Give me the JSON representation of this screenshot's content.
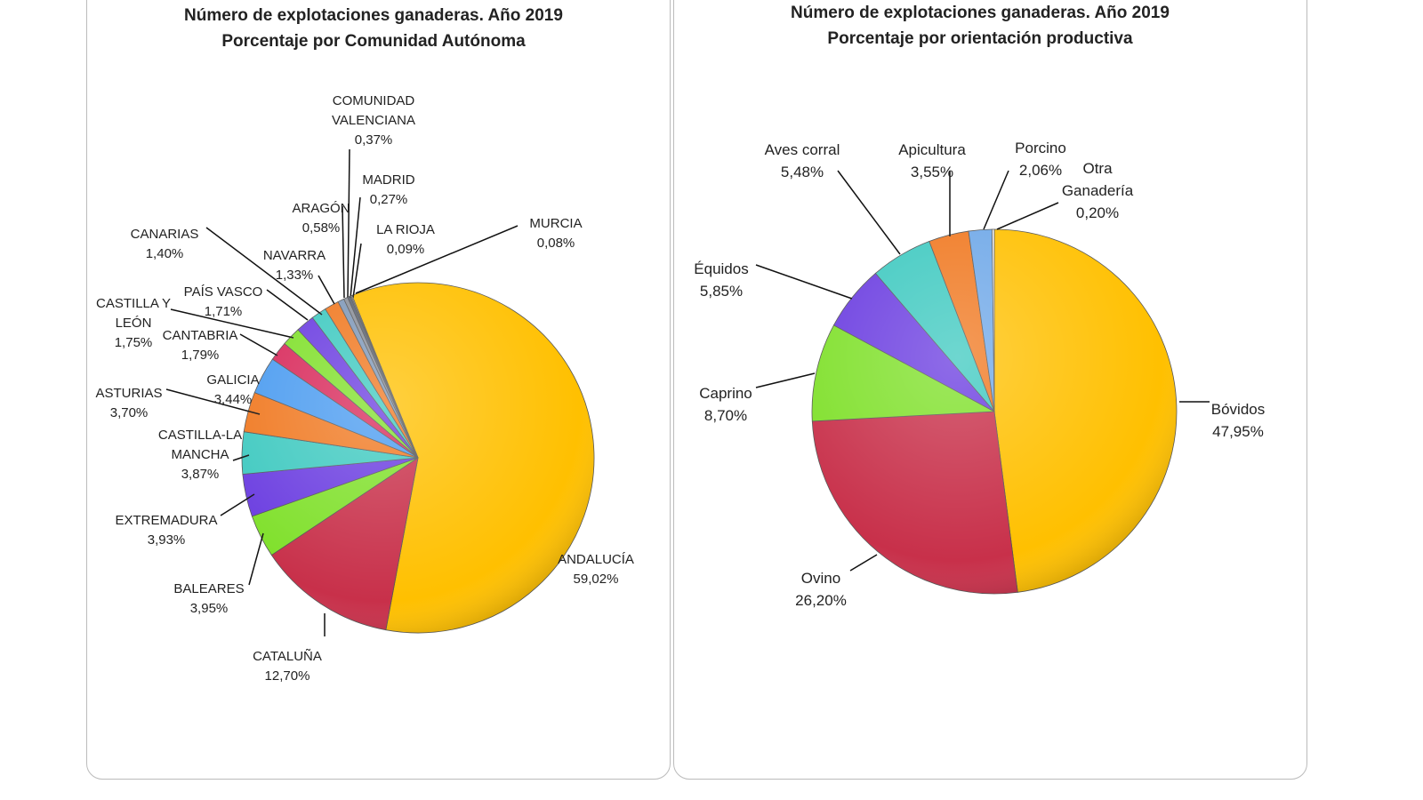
{
  "chart_data": [
    {
      "type": "pie",
      "title": [
        "Número de explotaciones ganaderas. Año 2019",
        "Porcentaje por Comunidad Autónoma"
      ],
      "unit": "%",
      "slices": [
        {
          "label": [
            "ANDALUCÍA"
          ],
          "value": 59.02,
          "text": "59,02%",
          "color": "#FFC000"
        },
        {
          "label": [
            "CATALUÑA"
          ],
          "value": 12.7,
          "text": "12,70%",
          "color": "#C8304A"
        },
        {
          "label": [
            "BALEARES"
          ],
          "value": 3.95,
          "text": "3,95%",
          "color": "#7FE02A"
        },
        {
          "label": [
            "EXTREMADURA"
          ],
          "value": 3.93,
          "text": "3,93%",
          "color": "#6A3CE0"
        },
        {
          "label": [
            "CASTILLA-LA",
            "MANCHA"
          ],
          "value": 3.87,
          "text": "3,87%",
          "color": "#3EC9C0"
        },
        {
          "label": [
            "ASTURIAS"
          ],
          "value": 3.7,
          "text": "3,70%",
          "color": "#F07820"
        },
        {
          "label": [
            "GALICIA"
          ],
          "value": 3.44,
          "text": "3,44%",
          "color": "#4A9BF0"
        },
        {
          "label": [
            "CANTABRIA"
          ],
          "value": 1.79,
          "text": "1,79%",
          "color": "#D8285A"
        },
        {
          "label": [
            "CASTILLA Y",
            "LEÓN"
          ],
          "value": 1.75,
          "text": "1,75%",
          "color": "#7FE02A"
        },
        {
          "label": [
            "PAÍS VASCO"
          ],
          "value": 1.71,
          "text": "1,71%",
          "color": "#6A3CE0"
        },
        {
          "label": [
            "CANARIAS"
          ],
          "value": 1.4,
          "text": "1,40%",
          "color": "#3EC9C0"
        },
        {
          "label": [
            "NAVARRA"
          ],
          "value": 1.33,
          "text": "1,33%",
          "color": "#F07820"
        },
        {
          "label": [
            "ARAGÓN"
          ],
          "value": 0.58,
          "text": "0,58%",
          "color": "#7F98B8"
        },
        {
          "label": [
            "COMUNIDAD",
            "VALENCIANA"
          ],
          "value": 0.37,
          "text": "0,37%",
          "color": "#8A8F99"
        },
        {
          "label": [
            "MADRID"
          ],
          "value": 0.27,
          "text": "0,27%",
          "color": "#5A6272"
        },
        {
          "label": [
            "LA RIOJA"
          ],
          "value": 0.09,
          "text": "0,09%",
          "color": "#A0A8B8"
        },
        {
          "label": [
            "MURCIA"
          ],
          "value": 0.08,
          "text": "0,08%",
          "color": "#F4F4F4"
        }
      ]
    },
    {
      "type": "pie",
      "title": [
        "Número de explotaciones ganaderas. Año 2019",
        "Porcentaje por orientación productiva"
      ],
      "unit": "%",
      "slices": [
        {
          "label": [
            "Bóvidos"
          ],
          "value": 47.95,
          "text": "47,95%",
          "color": "#FFC000"
        },
        {
          "label": [
            "Ovino"
          ],
          "value": 26.2,
          "text": "26,20%",
          "color": "#C8304A"
        },
        {
          "label": [
            "Caprino"
          ],
          "value": 8.7,
          "text": "8,70%",
          "color": "#7FE02A"
        },
        {
          "label": [
            "Équidos"
          ],
          "value": 5.85,
          "text": "5,85%",
          "color": "#6A3CE0"
        },
        {
          "label": [
            "Aves corral"
          ],
          "value": 5.48,
          "text": "5,48%",
          "color": "#3EC9C0"
        },
        {
          "label": [
            "Apicultura"
          ],
          "value": 3.55,
          "text": "3,55%",
          "color": "#F07820"
        },
        {
          "label": [
            "Porcino"
          ],
          "value": 2.06,
          "text": "2,06%",
          "color": "#6FA8E8"
        },
        {
          "label": [
            "Otra",
            "Ganadería"
          ],
          "value": 0.2,
          "text": "0,20%",
          "color": "#F4F4F4"
        }
      ]
    }
  ]
}
